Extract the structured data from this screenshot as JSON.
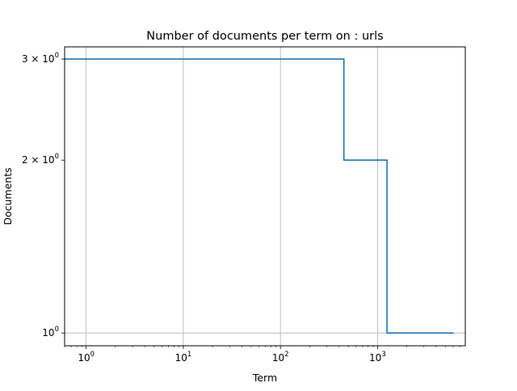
{
  "chart_data": {
    "type": "line",
    "title": "Number of documents per term on : urls",
    "xlabel": "Term",
    "ylabel": "Documents",
    "xscale": "log",
    "yscale": "log",
    "grid": true,
    "line_color": "#1f77b4",
    "grid_color": "#b0b0b0",
    "xlim": [
      0.6,
      8000
    ],
    "ylim": [
      0.95,
      3.15
    ],
    "series": [
      {
        "drawstyle": "steps-post",
        "points": [
          {
            "x": 0.6,
            "y": 3
          },
          {
            "x": 450,
            "y": 3
          },
          {
            "x": 450,
            "y": 2
          },
          {
            "x": 1250,
            "y": 2
          },
          {
            "x": 1250,
            "y": 1
          },
          {
            "x": 6000,
            "y": 1
          }
        ]
      }
    ],
    "x_major_ticks": [
      {
        "value": 1,
        "base": "10",
        "exp": "0"
      },
      {
        "value": 10,
        "base": "10",
        "exp": "1"
      },
      {
        "value": 100,
        "base": "10",
        "exp": "2"
      },
      {
        "value": 1000,
        "base": "10",
        "exp": "3"
      }
    ],
    "y_ticks": [
      {
        "value": 1,
        "prefix": "",
        "base": "10",
        "exp": "0"
      },
      {
        "value": 2,
        "prefix": "2 × ",
        "base": "10",
        "exp": "0"
      },
      {
        "value": 3,
        "prefix": "3 × ",
        "base": "10",
        "exp": "0"
      }
    ]
  }
}
